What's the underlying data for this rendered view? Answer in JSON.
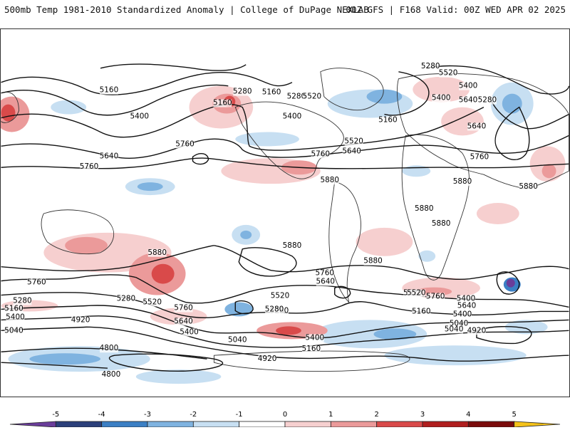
{
  "header": {
    "title_left": "500mb Temp 1981-2010 Standardized Anomaly | College of DuPage NEXLAB",
    "title_right": "00Z GFS | F168 Valid: 00Z WED APR 02 2025"
  },
  "colors": {
    "neg5": "#6a3d9a",
    "neg4": "#2b3f7a",
    "neg3": "#3b7fc4",
    "neg2": "#7fb3e0",
    "neg1": "#c7dff2",
    "zero": "#ffffff",
    "pos1": "#f6cfcf",
    "pos2": "#eb9a9a",
    "pos3": "#d94a4a",
    "pos4": "#b01e1e",
    "pos5": "#7a0b0b",
    "extreme_high": "#f4c21a",
    "contour": "#111111",
    "coastline": "#333333"
  },
  "contour_labels": [
    "5160",
    "5280",
    "5520",
    "5400",
    "5160",
    "5280",
    "5160",
    "5280",
    "5520",
    "5640",
    "5280",
    "5400",
    "5400",
    "5160",
    "5400",
    "5520",
    "5640",
    "5640",
    "5760",
    "5760",
    "5640",
    "5760",
    "5760",
    "5880",
    "5880",
    "5880",
    "5880",
    "5880",
    "5880",
    "5880",
    "5880",
    "5760",
    "5640",
    "5520",
    "5520",
    "5280",
    "5520",
    "5400",
    "5760",
    "5640",
    "5400",
    "5280",
    "5160",
    "5040",
    "4920",
    "5040",
    "5160",
    "5280",
    "5400",
    "5520",
    "5640",
    "5760",
    "5040",
    "5160",
    "5400",
    "5280",
    "4920",
    "4800",
    "4920",
    "4800",
    "5040",
    "5400",
    "5760"
  ],
  "colorbar": {
    "ticks": [
      "-5",
      "-4",
      "-3",
      "-2",
      "-1",
      "0",
      "1",
      "2",
      "3",
      "4",
      "5"
    ]
  }
}
